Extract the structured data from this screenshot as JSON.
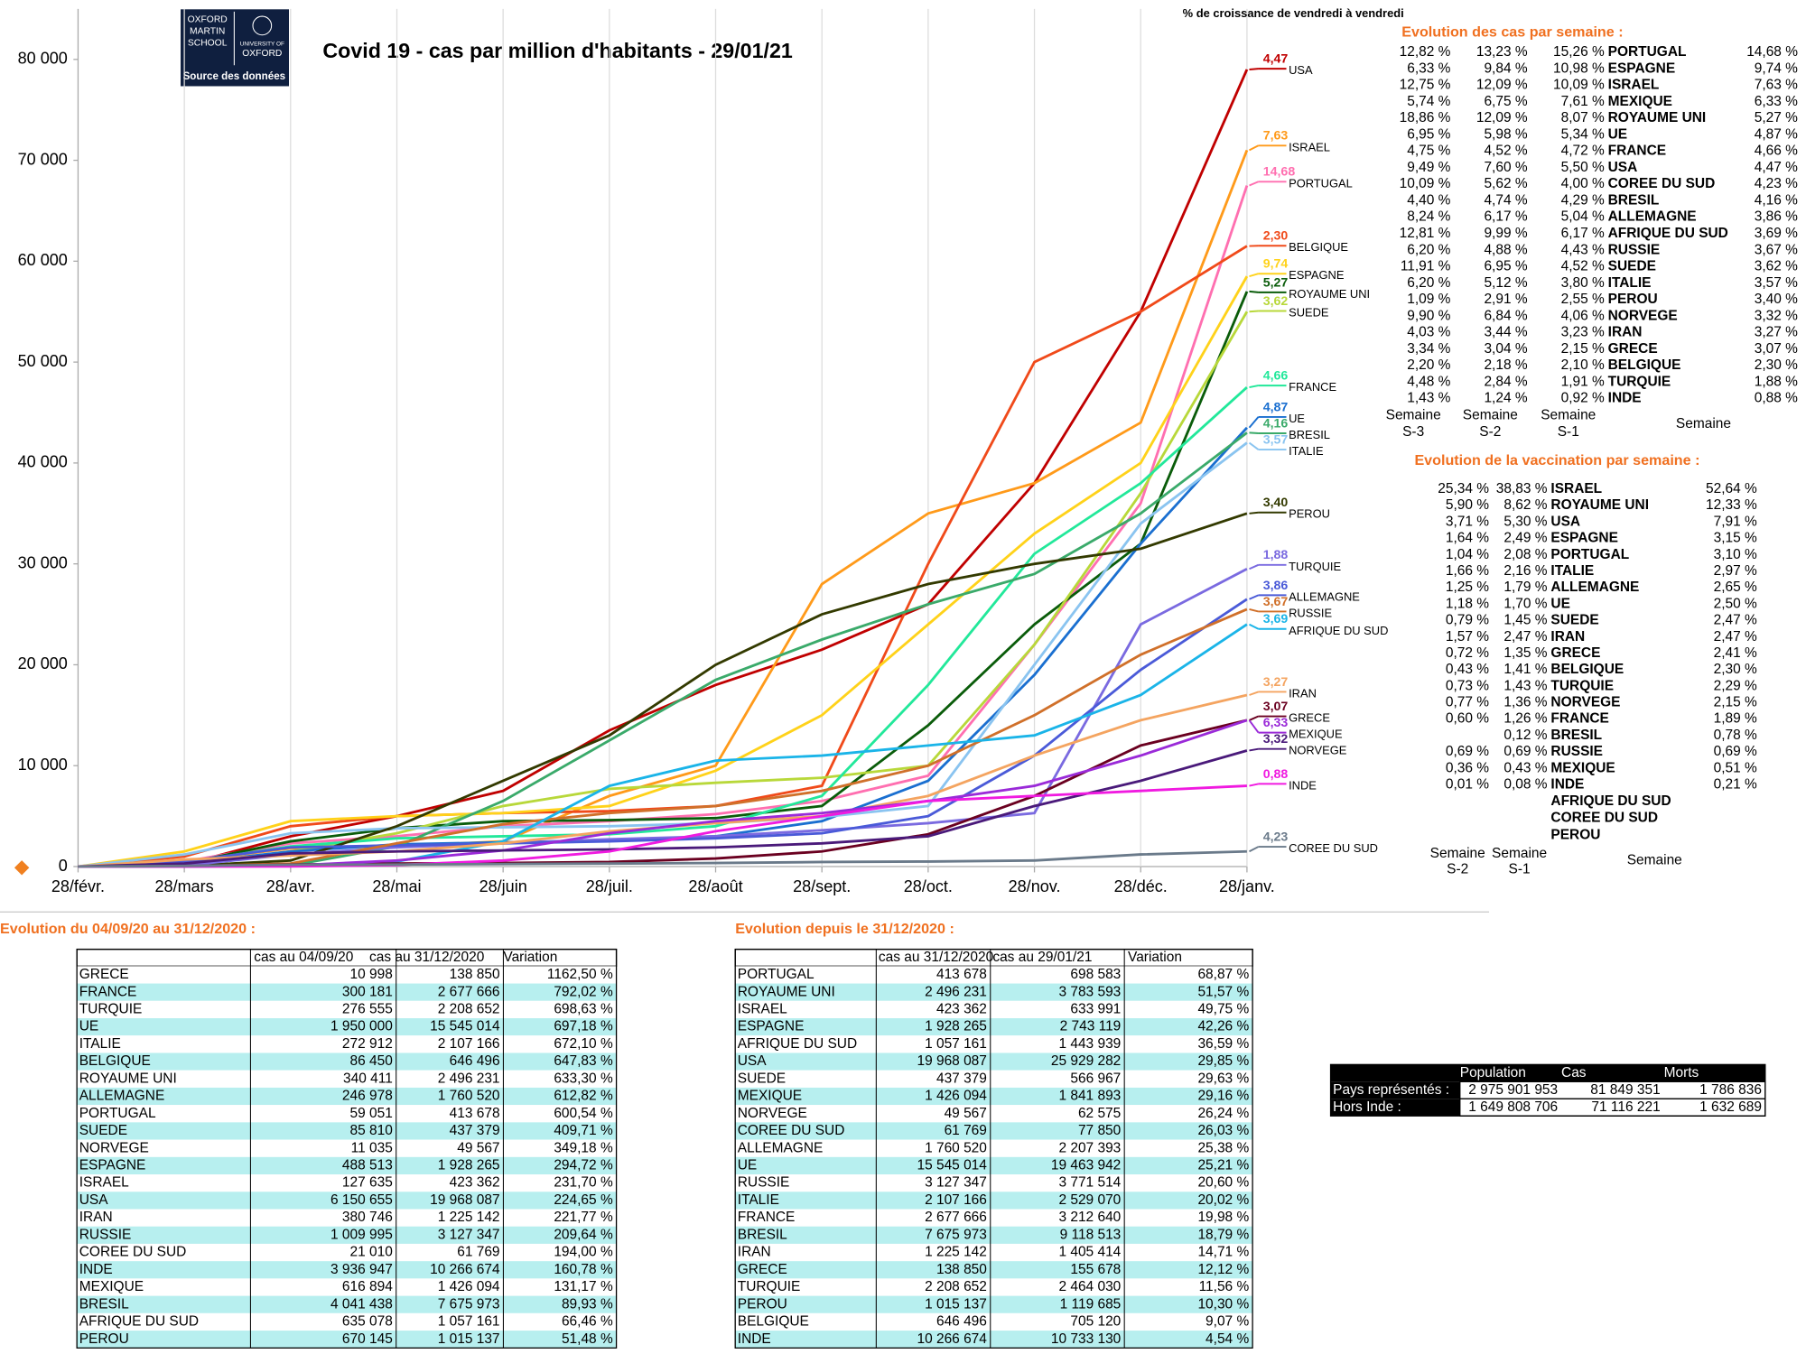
{
  "chart_data": {
    "type": "line",
    "title": "Covid 19 - cas par million d'habitants - 29/01/21",
    "categories": [
      "28/févr.",
      "28/mars",
      "28/avr.",
      "28/mai",
      "28/juin",
      "28/juil.",
      "28/août",
      "28/sept.",
      "28/oct.",
      "28/nov.",
      "28/déc.",
      "28/janv."
    ],
    "ylim": [
      0,
      85000
    ],
    "yticks": [
      0,
      {
        "value": 10000,
        "label": "10 000"
      },
      {
        "value": 20000,
        "label": "20 000"
      },
      {
        "value": 30000,
        "label": "30 000"
      },
      {
        "value": 40000,
        "label": "40 000"
      },
      {
        "value": 50000,
        "label": "50 000"
      },
      {
        "value": 60000,
        "label": "60 000"
      },
      {
        "value": 70000,
        "label": "70 000"
      },
      {
        "value": 80000,
        "label": "80 000"
      }
    ],
    "grid": true,
    "series": [
      {
        "name": "USA",
        "growth": "4,47",
        "color": "#c00000",
        "values": [
          0,
          200,
          3000,
          5000,
          7500,
          13500,
          18000,
          21500,
          26000,
          38000,
          55000,
          79000
        ]
      },
      {
        "name": "ISRAEL",
        "growth": "7,63",
        "color": "#ff9a1a",
        "values": [
          0,
          500,
          1800,
          2000,
          2500,
          7000,
          10000,
          28000,
          35000,
          38000,
          44000,
          71000
        ]
      },
      {
        "name": "PORTUGAL",
        "growth": "14,68",
        "color": "#ff6fb0",
        "values": [
          0,
          500,
          2300,
          3000,
          4000,
          4500,
          5200,
          6500,
          9000,
          22000,
          36000,
          67500
        ]
      },
      {
        "name": "BELGIQUE",
        "growth": "2,30",
        "color": "#f04a1a",
        "values": [
          0,
          1000,
          4000,
          5000,
          5300,
          5500,
          6000,
          8000,
          30000,
          50000,
          55000,
          61500
        ]
      },
      {
        "name": "ESPAGNE",
        "growth": "9,74",
        "color": "#ffd21a",
        "values": [
          0,
          1500,
          4500,
          5000,
          5300,
          6000,
          9500,
          15000,
          24000,
          33000,
          40000,
          58500
        ]
      },
      {
        "name": "ROYAUME UNI",
        "growth": "5,27",
        "color": "#0a5c0a",
        "values": [
          0,
          300,
          2500,
          3800,
          4500,
          4600,
          4800,
          6000,
          14000,
          24000,
          32000,
          57000
        ]
      },
      {
        "name": "SUEDE",
        "growth": "3,62",
        "color": "#b8d83a",
        "values": [
          0,
          200,
          1500,
          3300,
          6000,
          7700,
          8300,
          8800,
          10000,
          22000,
          37000,
          55000
        ]
      },
      {
        "name": "FRANCE",
        "growth": "4,66",
        "color": "#22e89a",
        "values": [
          0,
          400,
          2000,
          2800,
          3000,
          3200,
          4000,
          7000,
          18000,
          31000,
          38000,
          47500
        ]
      },
      {
        "name": "UE",
        "growth": "4,87",
        "color": "#1a6fd0",
        "values": [
          0,
          300,
          1500,
          2200,
          2400,
          2600,
          3000,
          4500,
          8500,
          19000,
          32000,
          43500
        ]
      },
      {
        "name": "BRESIL",
        "growth": "4,16",
        "color": "#3aaa6a",
        "values": [
          0,
          0,
          100,
          2000,
          6500,
          12500,
          18500,
          22500,
          26000,
          29000,
          35000,
          43000
        ]
      },
      {
        "name": "ITALIE",
        "growth": "3,57",
        "color": "#8ac4f0",
        "values": [
          0,
          1200,
          3300,
          3800,
          3900,
          4000,
          4300,
          4900,
          6000,
          20000,
          34000,
          42000
        ]
      },
      {
        "name": "PEROU",
        "growth": "3,40",
        "color": "#333a00",
        "values": [
          0,
          50,
          600,
          4000,
          8500,
          13000,
          20000,
          25000,
          28000,
          30000,
          31500,
          35000
        ]
      },
      {
        "name": "TURQUIE",
        "growth": "1,88",
        "color": "#7a6ae0",
        "values": [
          0,
          100,
          1200,
          1900,
          2300,
          2700,
          3000,
          3600,
          4300,
          5300,
          24000,
          29500
        ]
      },
      {
        "name": "ALLEMAGNE",
        "growth": "3,86",
        "color": "#4a5ad8",
        "values": [
          0,
          500,
          1900,
          2100,
          2300,
          2500,
          2800,
          3300,
          5000,
          11000,
          19500,
          26500
        ]
      },
      {
        "name": "RUSSIE",
        "growth": "3,67",
        "color": "#d0702a",
        "values": [
          0,
          0,
          300,
          2300,
          4200,
          5300,
          6000,
          7500,
          10000,
          15000,
          21000,
          25500
        ]
      },
      {
        "name": "AFRIQUE DU SUD",
        "growth": "3,69",
        "color": "#1ab4e8",
        "values": [
          0,
          0,
          100,
          500,
          2500,
          8000,
          10500,
          11000,
          12000,
          13000,
          17000,
          24000
        ]
      },
      {
        "name": "IRAN",
        "growth": "3,27",
        "color": "#f4a460",
        "values": [
          0,
          700,
          1100,
          1500,
          2300,
          3500,
          4300,
          5000,
          7000,
          11000,
          14500,
          17000
        ]
      },
      {
        "name": "GRECE",
        "growth": "3,07",
        "color": "#6a0020",
        "values": [
          0,
          50,
          200,
          300,
          350,
          450,
          800,
          1500,
          3200,
          7000,
          12000,
          14500
        ]
      },
      {
        "name": "MEXIQUE",
        "growth": "6,33",
        "color": "#9a2ad8",
        "values": [
          0,
          0,
          100,
          600,
          1600,
          3300,
          4500,
          5300,
          6500,
          8000,
          11000,
          14500
        ]
      },
      {
        "name": "NORVEGE",
        "growth": "3,32",
        "color": "#4a1a7a",
        "values": [
          0,
          300,
          1300,
          1500,
          1600,
          1700,
          1900,
          2300,
          3000,
          6000,
          8500,
          11500
        ]
      },
      {
        "name": "INDE",
        "growth": "0,88",
        "color": "#f01ae0",
        "values": [
          0,
          0,
          20,
          150,
          600,
          1500,
          3500,
          5000,
          6500,
          7000,
          7500,
          8000
        ]
      },
      {
        "name": "COREE DU SUD",
        "growth": "4,23",
        "color": "#6a7a8a",
        "values": [
          0,
          60,
          180,
          200,
          250,
          300,
          350,
          450,
          500,
          600,
          1200,
          1500
        ]
      }
    ]
  },
  "logo": {
    "left": [
      "OXFORD",
      "MARTIN",
      "SCHOOL"
    ],
    "right": [
      "UNIVERSITY OF",
      "OXFORD"
    ],
    "caption": "Source des données"
  },
  "weekly_cases": {
    "note": "% de croissance de vendredi à vendredi",
    "title": "Evolution des cas par semaine :",
    "headers": [
      [
        "Semaine",
        "S-3"
      ],
      [
        "Semaine",
        "S-2"
      ],
      [
        "Semaine",
        "S-1"
      ],
      [
        "Semaine"
      ]
    ],
    "rows": [
      [
        "12,82 %",
        "13,23 %",
        "15,26 %",
        "PORTUGAL",
        "14,68 %"
      ],
      [
        "6,33 %",
        "9,84 %",
        "10,98 %",
        "ESPAGNE",
        "9,74 %"
      ],
      [
        "12,75 %",
        "12,09 %",
        "10,09 %",
        "ISRAEL",
        "7,63 %"
      ],
      [
        "5,74 %",
        "6,75 %",
        "7,61 %",
        "MEXIQUE",
        "6,33 %"
      ],
      [
        "18,86 %",
        "12,09 %",
        "8,07 %",
        "ROYAUME UNI",
        "5,27 %"
      ],
      [
        "6,95 %",
        "5,98 %",
        "5,34 %",
        "UE",
        "4,87 %"
      ],
      [
        "4,75 %",
        "4,52 %",
        "4,72 %",
        "FRANCE",
        "4,66 %"
      ],
      [
        "9,49 %",
        "7,60 %",
        "5,50 %",
        "USA",
        "4,47 %"
      ],
      [
        "10,09 %",
        "5,62 %",
        "4,00 %",
        "COREE DU SUD",
        "4,23 %"
      ],
      [
        "4,40 %",
        "4,74 %",
        "4,29 %",
        "BRESIL",
        "4,16 %"
      ],
      [
        "8,24 %",
        "6,17 %",
        "5,04 %",
        "ALLEMAGNE",
        "3,86 %"
      ],
      [
        "12,81 %",
        "9,99 %",
        "6,17 %",
        "AFRIQUE DU SUD",
        "3,69 %"
      ],
      [
        "6,20 %",
        "4,88 %",
        "4,43 %",
        "RUSSIE",
        "3,67 %"
      ],
      [
        "11,91 %",
        "6,95 %",
        "4,52 %",
        "SUEDE",
        "3,62 %"
      ],
      [
        "6,20 %",
        "5,12 %",
        "3,80 %",
        "ITALIE",
        "3,57 %"
      ],
      [
        "1,09 %",
        "2,91 %",
        "2,55 %",
        "PEROU",
        "3,40 %"
      ],
      [
        "9,90 %",
        "6,84 %",
        "4,06 %",
        "NORVEGE",
        "3,32 %"
      ],
      [
        "4,03 %",
        "3,44 %",
        "3,23 %",
        "IRAN",
        "3,27 %"
      ],
      [
        "3,34 %",
        "3,04 %",
        "2,15 %",
        "GRECE",
        "3,07 %"
      ],
      [
        "2,20 %",
        "2,18 %",
        "2,10 %",
        "BELGIQUE",
        "2,30 %"
      ],
      [
        "4,48 %",
        "2,84 %",
        "1,91 %",
        "TURQUIE",
        "1,88 %"
      ],
      [
        "1,43 %",
        "1,24 %",
        "0,92 %",
        "INDE",
        "0,88 %"
      ]
    ]
  },
  "vaccination": {
    "title": "Evolution de la vaccination par semaine :",
    "headers": [
      [
        "Semaine",
        "S-2"
      ],
      [
        "Semaine",
        "S-1"
      ],
      [
        "Semaine"
      ]
    ],
    "rows": [
      [
        "25,34 %",
        "38,83 %",
        "ISRAEL",
        "52,64 %"
      ],
      [
        "5,90 %",
        "8,62 %",
        "ROYAUME UNI",
        "12,33 %"
      ],
      [
        "3,71 %",
        "5,30 %",
        "USA",
        "7,91 %"
      ],
      [
        "1,64 %",
        "2,49 %",
        "ESPAGNE",
        "3,15 %"
      ],
      [
        "1,04 %",
        "2,08 %",
        "PORTUGAL",
        "3,10 %"
      ],
      [
        "1,66 %",
        "2,16 %",
        "ITALIE",
        "2,97 %"
      ],
      [
        "1,25 %",
        "1,79 %",
        "ALLEMAGNE",
        "2,65 %"
      ],
      [
        "1,18 %",
        "1,70 %",
        "UE",
        "2,50 %"
      ],
      [
        "0,79 %",
        "1,45 %",
        "SUEDE",
        "2,47 %"
      ],
      [
        "1,57 %",
        "2,47 %",
        "IRAN",
        "2,47 %"
      ],
      [
        "0,72 %",
        "1,35 %",
        "GRECE",
        "2,41 %"
      ],
      [
        "0,43 %",
        "1,41 %",
        "BELGIQUE",
        "2,30 %"
      ],
      [
        "0,73 %",
        "1,43 %",
        "TURQUIE",
        "2,29 %"
      ],
      [
        "0,77 %",
        "1,36 %",
        "NORVEGE",
        "2,15 %"
      ],
      [
        "0,60 %",
        "1,26 %",
        "FRANCE",
        "1,89 %"
      ],
      [
        null,
        "0,12 %",
        "BRESIL",
        "0,78 %"
      ],
      [
        "0,69 %",
        "0,69 %",
        "RUSSIE",
        "0,69 %"
      ],
      [
        "0,36 %",
        "0,43 %",
        "MEXIQUE",
        "0,51 %"
      ],
      [
        "0,01 %",
        "0,08 %",
        "INDE",
        "0,21 %"
      ]
    ],
    "extra": [
      "AFRIQUE DU SUD",
      "COREE DU SUD",
      "PEROU"
    ]
  },
  "table_left": {
    "title": "Evolution du 04/09/20 au 31/12/2020 :",
    "headers": [
      "cas au 04/09/20",
      "cas au 31/12/2020",
      "Variation"
    ],
    "rows": [
      [
        "GRECE",
        "10 998",
        "138 850",
        "1162,50 %"
      ],
      [
        "FRANCE",
        "300 181",
        "2 677 666",
        "792,02 %"
      ],
      [
        "TURQUIE",
        "276 555",
        "2 208 652",
        "698,63 %"
      ],
      [
        "UE",
        "1 950 000",
        "15 545 014",
        "697,18 %"
      ],
      [
        "ITALIE",
        "272 912",
        "2 107 166",
        "672,10 %"
      ],
      [
        "BELGIQUE",
        "86 450",
        "646 496",
        "647,83 %"
      ],
      [
        "ROYAUME UNI",
        "340 411",
        "2 496 231",
        "633,30 %"
      ],
      [
        "ALLEMAGNE",
        "246 978",
        "1 760 520",
        "612,82 %"
      ],
      [
        "PORTUGAL",
        "59 051",
        "413 678",
        "600,54 %"
      ],
      [
        "SUEDE",
        "85 810",
        "437 379",
        "409,71 %"
      ],
      [
        "NORVEGE",
        "11 035",
        "49 567",
        "349,18 %"
      ],
      [
        "ESPAGNE",
        "488 513",
        "1 928 265",
        "294,72 %"
      ],
      [
        "ISRAEL",
        "127 635",
        "423 362",
        "231,70 %"
      ],
      [
        "USA",
        "6 150 655",
        "19 968 087",
        "224,65 %"
      ],
      [
        "IRAN",
        "380 746",
        "1 225 142",
        "221,77 %"
      ],
      [
        "RUSSIE",
        "1 009 995",
        "3 127 347",
        "209,64 %"
      ],
      [
        "COREE DU SUD",
        "21 010",
        "61 769",
        "194,00 %"
      ],
      [
        "INDE",
        "3 936 947",
        "10 266 674",
        "160,78 %"
      ],
      [
        "MEXIQUE",
        "616 894",
        "1 426 094",
        "131,17 %"
      ],
      [
        "BRESIL",
        "4 041 438",
        "7 675 973",
        "89,93 %"
      ],
      [
        "AFRIQUE DU SUD",
        "635 078",
        "1 057 161",
        "66,46 %"
      ],
      [
        "PEROU",
        "670 145",
        "1 015 137",
        "51,48 %"
      ]
    ]
  },
  "table_right": {
    "title": "Evolution depuis le 31/12/2020 :",
    "headers": [
      "cas au 31/12/2020",
      "cas au 29/01/21",
      "Variation"
    ],
    "rows": [
      [
        "PORTUGAL",
        "413 678",
        "698 583",
        "68,87 %"
      ],
      [
        "ROYAUME UNI",
        "2 496 231",
        "3 783 593",
        "51,57 %"
      ],
      [
        "ISRAEL",
        "423 362",
        "633 991",
        "49,75 %"
      ],
      [
        "ESPAGNE",
        "1 928 265",
        "2 743 119",
        "42,26 %"
      ],
      [
        "AFRIQUE DU SUD",
        "1 057 161",
        "1 443 939",
        "36,59 %"
      ],
      [
        "USA",
        "19 968 087",
        "25 929 282",
        "29,85 %"
      ],
      [
        "SUEDE",
        "437 379",
        "566 967",
        "29,63 %"
      ],
      [
        "MEXIQUE",
        "1 426 094",
        "1 841 893",
        "29,16 %"
      ],
      [
        "NORVEGE",
        "49 567",
        "62 575",
        "26,24 %"
      ],
      [
        "COREE DU SUD",
        "61 769",
        "77 850",
        "26,03 %"
      ],
      [
        "ALLEMAGNE",
        "1 760 520",
        "2 207 393",
        "25,38 %"
      ],
      [
        "UE",
        "15 545 014",
        "19 463 942",
        "25,21 %"
      ],
      [
        "RUSSIE",
        "3 127 347",
        "3 771 514",
        "20,60 %"
      ],
      [
        "ITALIE",
        "2 107 166",
        "2 529 070",
        "20,02 %"
      ],
      [
        "FRANCE",
        "2 677 666",
        "3 212 640",
        "19,98 %"
      ],
      [
        "BRESIL",
        "7 675 973",
        "9 118 513",
        "18,79 %"
      ],
      [
        "IRAN",
        "1 225 142",
        "1 405 414",
        "14,71 %"
      ],
      [
        "GRECE",
        "138 850",
        "155 678",
        "12,12 %"
      ],
      [
        "TURQUIE",
        "2 208 652",
        "2 464 030",
        "11,56 %"
      ],
      [
        "PEROU",
        "1 015 137",
        "1 119 685",
        "10,30 %"
      ],
      [
        "BELGIQUE",
        "646 496",
        "705 120",
        "9,07 %"
      ],
      [
        "INDE",
        "10 266 674",
        "10 733 130",
        "4,54 %"
      ]
    ]
  },
  "population": {
    "headers": [
      "Population",
      "Cas",
      "Morts"
    ],
    "rows": [
      [
        "Pays représentés :",
        "2 975 901 953",
        "81 849 351",
        "1 786 836"
      ],
      [
        "Hors Inde :",
        "1 649 808 706",
        "71 116 221",
        "1 632 689"
      ]
    ]
  }
}
